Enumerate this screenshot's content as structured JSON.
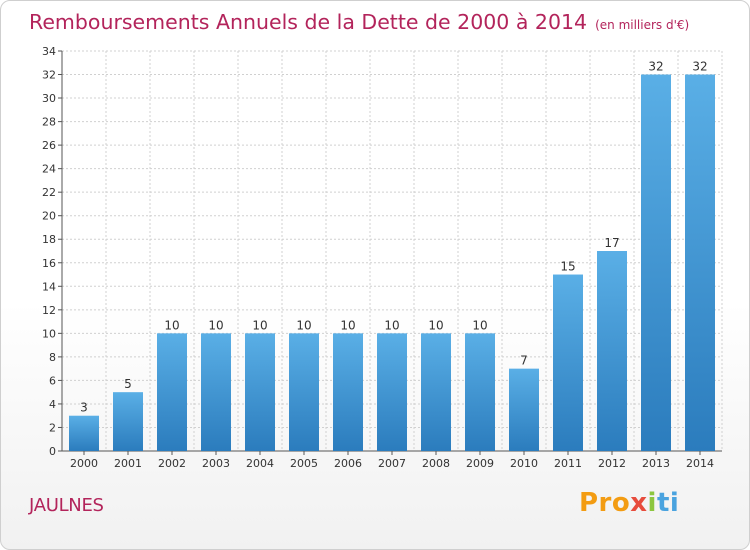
{
  "header": {
    "title": "Remboursements Annuels de la Dette de 2000 à 2014",
    "unit": "(en milliers d'€)"
  },
  "footer": {
    "commune": "JAULNES",
    "logo": [
      "Pro",
      "x",
      "i",
      "ti"
    ]
  },
  "colors": {
    "title": "#b3245b",
    "bar_top": "#5aafe6",
    "bar_bottom": "#2b7cbd",
    "grid": "#d0d0d0"
  },
  "chart_data": {
    "type": "bar",
    "categories": [
      "2000",
      "2001",
      "2002",
      "2003",
      "2004",
      "2005",
      "2006",
      "2007",
      "2008",
      "2009",
      "2010",
      "2011",
      "2012",
      "2013",
      "2014"
    ],
    "values": [
      3,
      5,
      10,
      10,
      10,
      10,
      10,
      10,
      10,
      10,
      7,
      15,
      17,
      32,
      32
    ],
    "ylim": [
      0,
      34
    ],
    "yticks": [
      0,
      2,
      4,
      6,
      8,
      10,
      12,
      14,
      16,
      18,
      20,
      22,
      24,
      26,
      28,
      30,
      32,
      34
    ],
    "grid": true,
    "legend": "none"
  }
}
